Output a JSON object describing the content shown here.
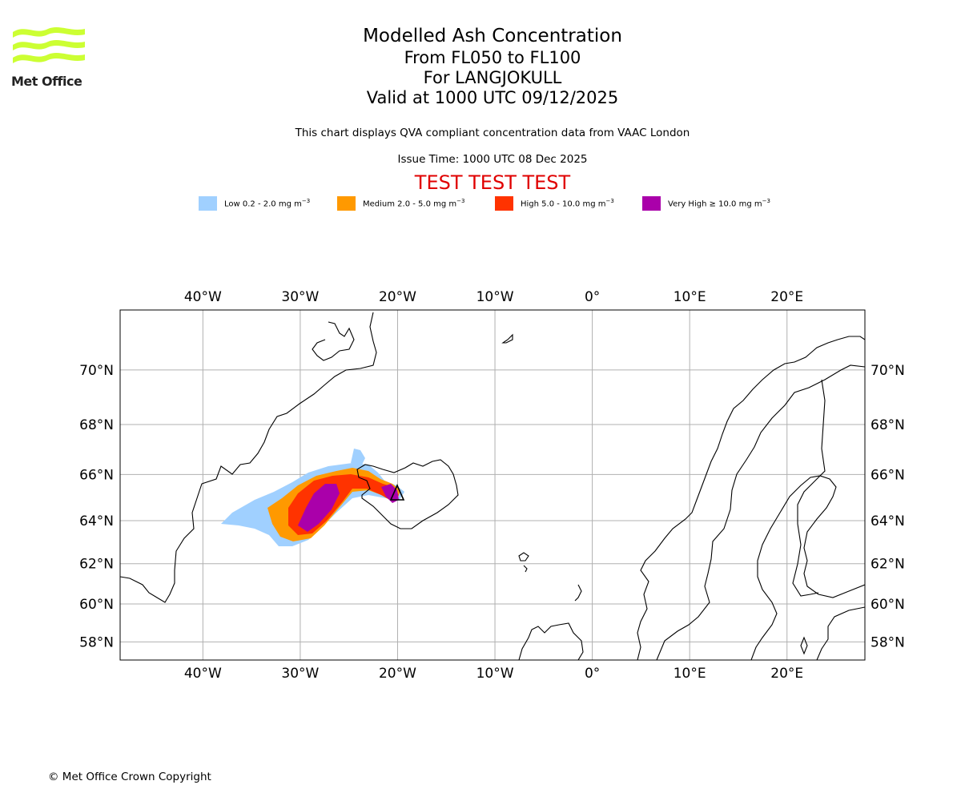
{
  "brand": {
    "name": "Met Office",
    "logo_color": "#ccff33"
  },
  "header": {
    "title": "Modelled Ash Concentration",
    "levels": "From FL050 to FL100",
    "location": "For LANGJOKULL",
    "valid": "Valid at 1000 UTC 09/12/2025",
    "description": "This chart displays QVA compliant concentration data from VAAC London",
    "issue_time": "Issue Time: 1000 UTC 08 Dec 2025",
    "test_banner": "TEST TEST TEST"
  },
  "legend": [
    {
      "label": "Low 0.2 - 2.0 mg m",
      "unit_exp": "−3",
      "color": "#a0d0ff"
    },
    {
      "label": "Medium 2.0 - 5.0 mg m",
      "unit_exp": "−3",
      "color": "#ff9900"
    },
    {
      "label": "High 5.0 - 10.0 mg m",
      "unit_exp": "−3",
      "color": "#ff3300"
    },
    {
      "label": "Very High  ≥  10.0 mg m",
      "unit_exp": "−3",
      "color": "#aa00aa"
    }
  ],
  "map": {
    "lon_range": [
      -48.5,
      28
    ],
    "lat_range": [
      57,
      72
    ],
    "lon_ticks": [
      {
        "value": -40,
        "label": "40°W"
      },
      {
        "value": -30,
        "label": "30°W"
      },
      {
        "value": -20,
        "label": "20°W"
      },
      {
        "value": -10,
        "label": "10°W"
      },
      {
        "value": 0,
        "label": "0°"
      },
      {
        "value": 10,
        "label": "10°E"
      },
      {
        "value": 20,
        "label": "20°E"
      }
    ],
    "lat_ticks": [
      {
        "value": 58,
        "label": "58°N"
      },
      {
        "value": 60,
        "label": "60°N"
      },
      {
        "value": 62,
        "label": "62°N"
      },
      {
        "value": 64,
        "label": "64°N"
      },
      {
        "value": 66,
        "label": "66°N"
      },
      {
        "value": 68,
        "label": "68°N"
      },
      {
        "value": 70,
        "label": "70°N"
      }
    ],
    "grid": true,
    "volcano": {
      "name": "LANGJOKULL",
      "lon": -20.2,
      "lat": 64.8
    }
  },
  "footer": {
    "copyright": "© Met Office Crown Copyright"
  }
}
